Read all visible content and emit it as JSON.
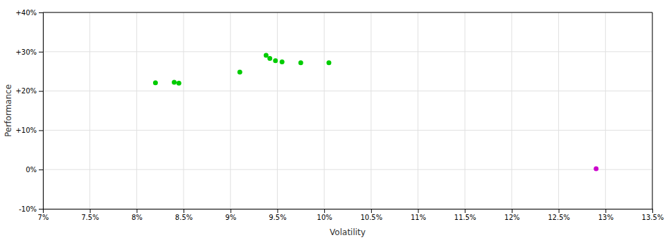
{
  "chart_data": {
    "type": "scatter",
    "xlabel": "Volatility",
    "ylabel": "Performance",
    "xlim": [
      0.07,
      0.135
    ],
    "ylim": [
      -0.1,
      0.4
    ],
    "xticks": [
      {
        "value": 0.07,
        "label": "7%"
      },
      {
        "value": 0.075,
        "label": "7.5%"
      },
      {
        "value": 0.08,
        "label": "8%"
      },
      {
        "value": 0.085,
        "label": "8.5%"
      },
      {
        "value": 0.09,
        "label": "9%"
      },
      {
        "value": 0.095,
        "label": "9.5%"
      },
      {
        "value": 0.1,
        "label": "10%"
      },
      {
        "value": 0.105,
        "label": "10.5%"
      },
      {
        "value": 0.11,
        "label": "11%"
      },
      {
        "value": 0.115,
        "label": "11.5%"
      },
      {
        "value": 0.12,
        "label": "12%"
      },
      {
        "value": 0.125,
        "label": "12.5%"
      },
      {
        "value": 0.13,
        "label": "13%"
      },
      {
        "value": 0.135,
        "label": "13.5%"
      }
    ],
    "yticks": [
      {
        "value": -0.1,
        "label": "-10%"
      },
      {
        "value": 0.0,
        "label": "0%"
      },
      {
        "value": 0.1,
        "label": "+10%"
      },
      {
        "value": 0.2,
        "label": "+20%"
      },
      {
        "value": 0.3,
        "label": "+30%"
      },
      {
        "value": 0.4,
        "label": "+40%"
      }
    ],
    "grid": true,
    "series": [
      {
        "color": "#00cc00",
        "x": [
          0.082,
          0.084,
          0.0845,
          0.091,
          0.0938,
          0.0942,
          0.0948,
          0.0955,
          0.0975,
          0.1005
        ],
        "values": [
          0.221,
          0.222,
          0.22,
          0.248,
          0.291,
          0.283,
          0.277,
          0.274,
          0.272,
          0.272
        ]
      },
      {
        "color": "#cc00cc",
        "x": [
          0.129
        ],
        "values": [
          0.002
        ]
      }
    ]
  }
}
